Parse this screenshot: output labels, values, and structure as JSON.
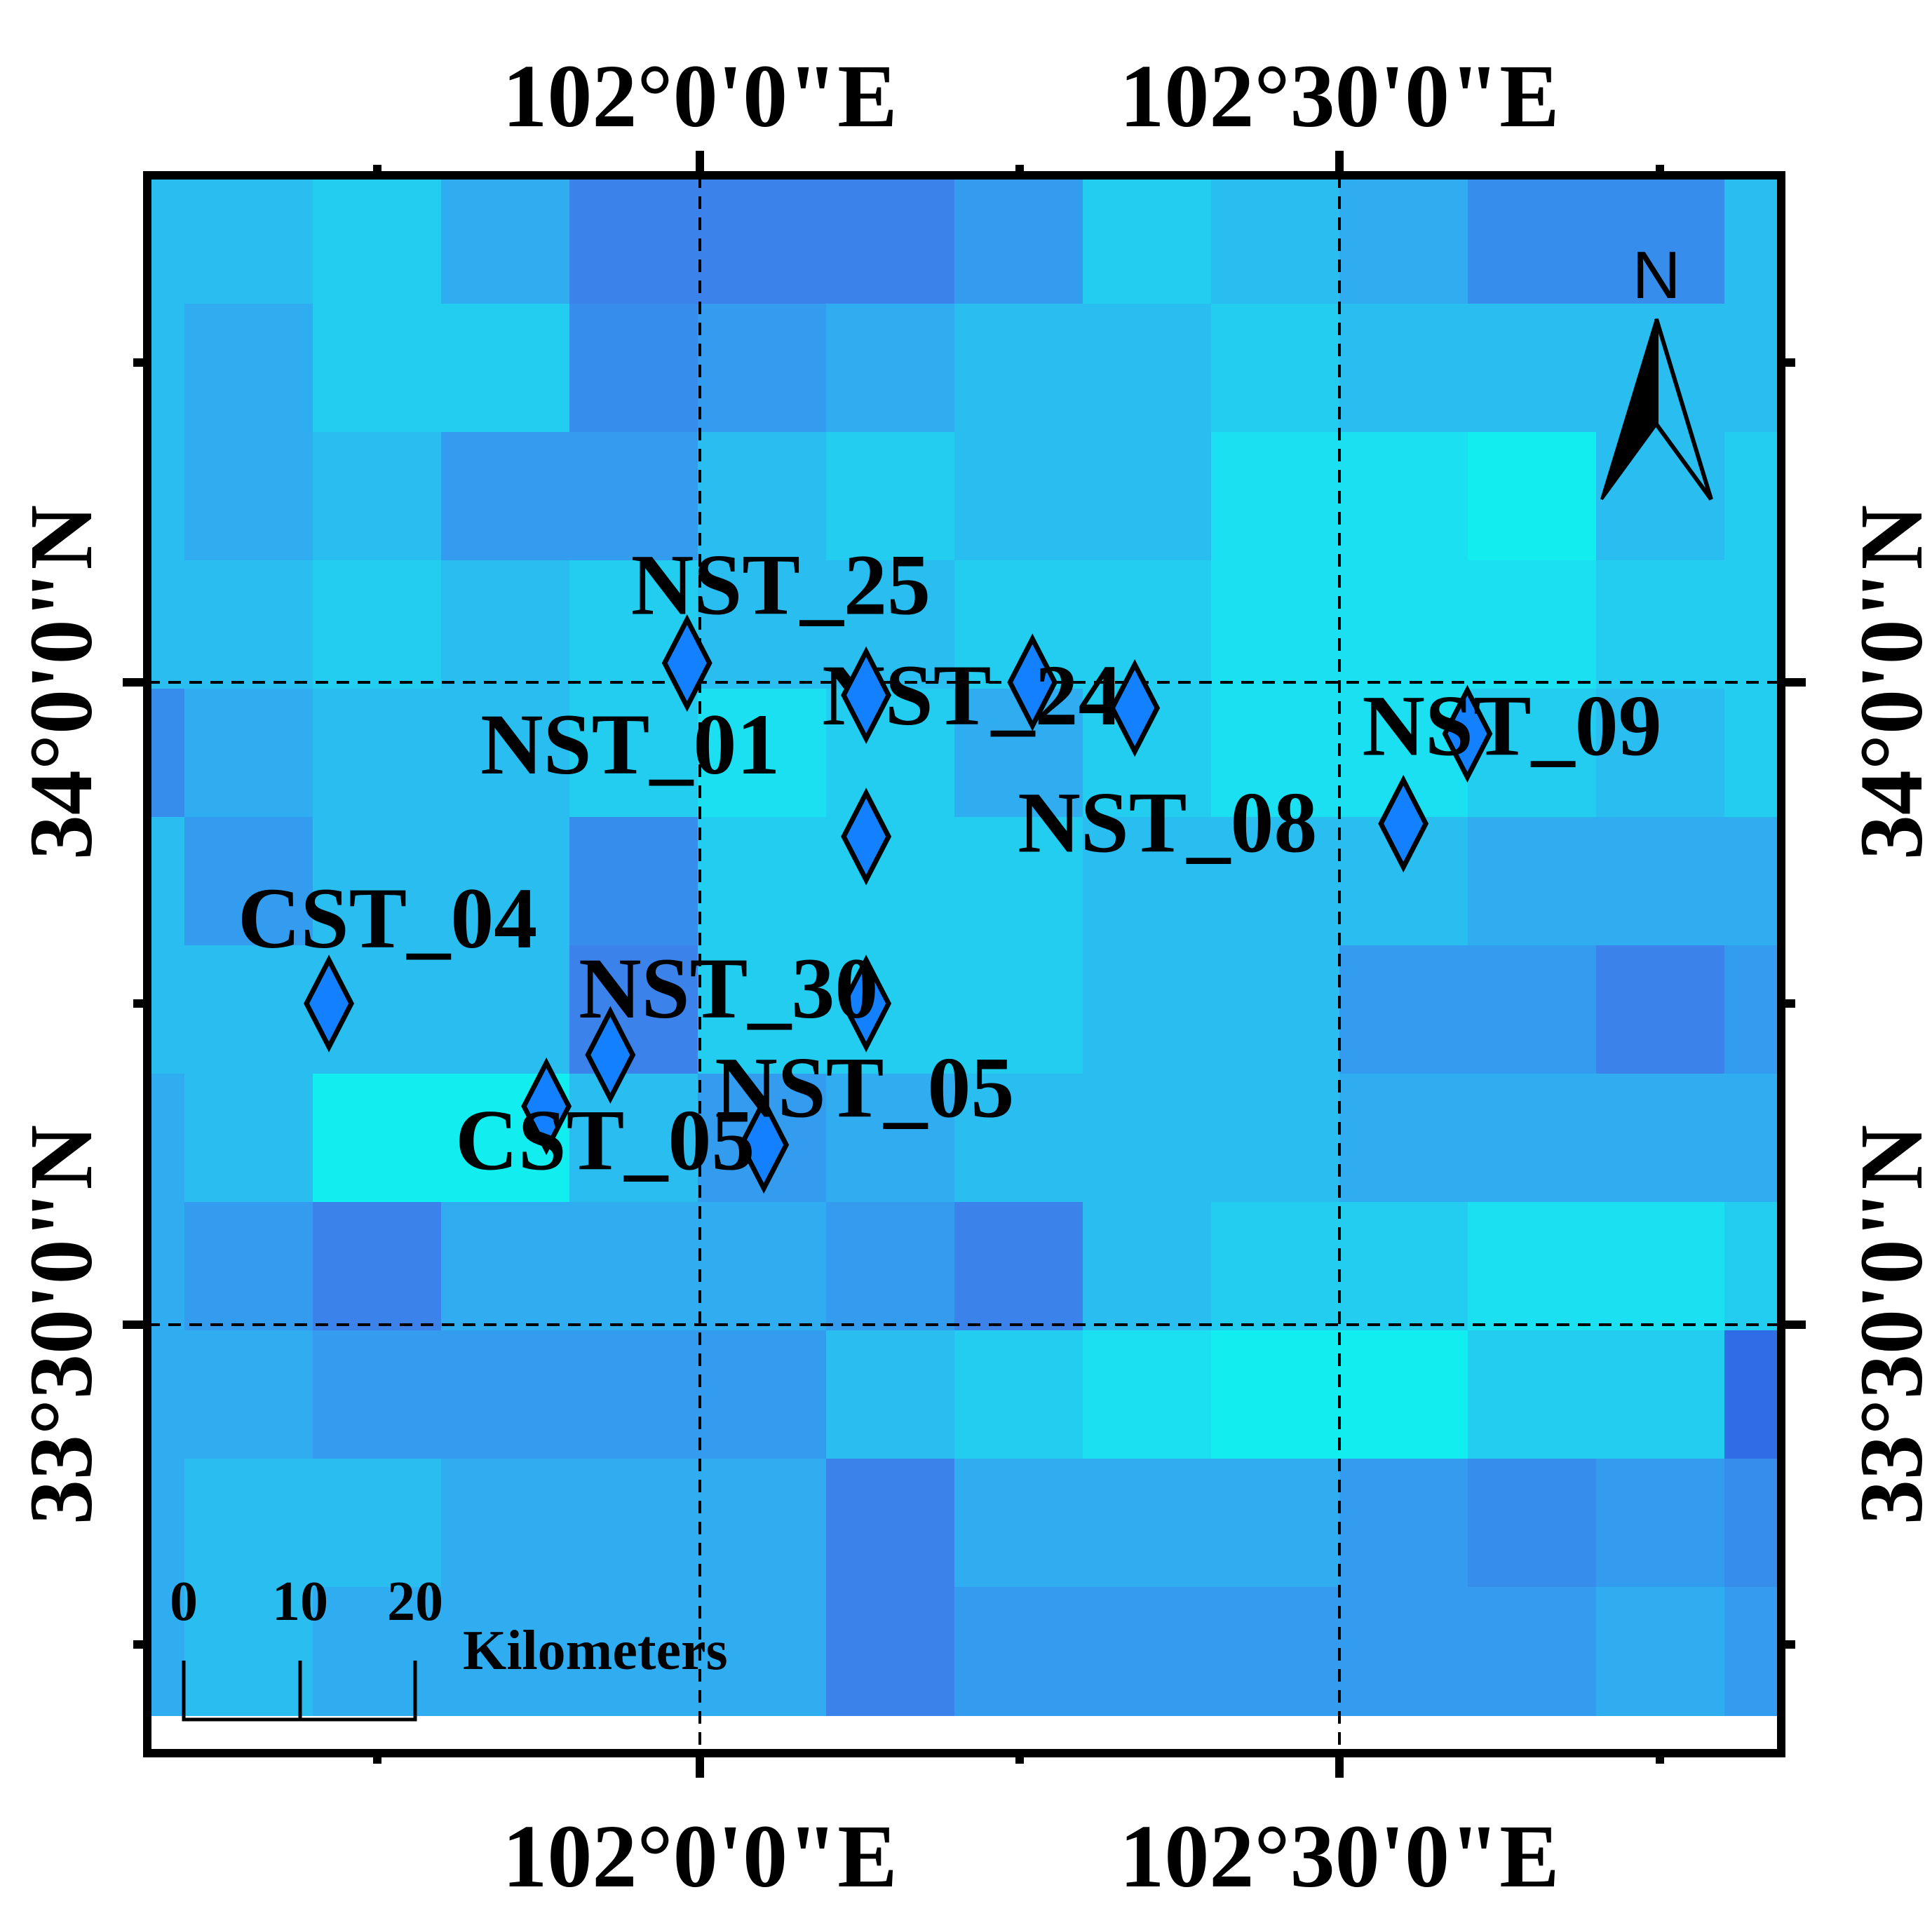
{
  "map": {
    "longitude_labels": [
      "102°0'0\"E",
      "102°30'0\"E"
    ],
    "latitude_labels": [
      "34°0'0\"N",
      "33°30'0\"N"
    ],
    "north_arrow_label": "N",
    "scale_bar": {
      "ticks": [
        "0",
        "10",
        "20"
      ],
      "unit": "Kilometers"
    },
    "raster": {
      "color_ramp": [
        "#12EEF0",
        "#1AE0F2",
        "#22CDF0",
        "#29BDF0",
        "#2FADF0",
        "#339CEE",
        "#378DEC",
        "#3B82EA",
        "#2F6CE6",
        "#1C3CE4"
      ],
      "grid": [
        [
          3,
          3,
          2,
          4,
          7,
          7,
          7,
          5,
          2,
          3,
          4,
          6,
          6,
          3,
          7
        ],
        [
          3,
          4,
          2,
          2,
          6,
          5,
          4,
          3,
          3,
          2,
          3,
          3,
          3,
          3,
          5
        ],
        [
          3,
          4,
          3,
          5,
          5,
          3,
          2,
          3,
          3,
          1,
          1,
          0,
          3,
          2,
          3
        ],
        [
          3,
          3,
          2,
          3,
          2,
          3,
          3,
          2,
          2,
          1,
          1,
          1,
          2,
          2,
          3
        ],
        [
          6,
          4,
          3,
          3,
          2,
          1,
          2,
          4,
          2,
          1,
          1,
          2,
          3,
          2,
          3
        ],
        [
          3,
          5,
          3,
          3,
          6,
          2,
          2,
          2,
          3,
          3,
          3,
          4,
          4,
          4,
          4
        ],
        [
          3,
          3,
          3,
          3,
          7,
          2,
          2,
          2,
          3,
          3,
          5,
          5,
          7,
          5,
          3
        ],
        [
          4,
          3,
          0,
          0,
          3,
          5,
          4,
          3,
          3,
          3,
          4,
          4,
          4,
          4,
          3
        ],
        [
          4,
          5,
          7,
          4,
          4,
          4,
          5,
          7,
          3,
          2,
          2,
          1,
          1,
          2,
          3
        ],
        [
          4,
          4,
          5,
          5,
          5,
          5,
          3,
          2,
          1,
          0,
          0,
          2,
          2,
          8,
          9
        ],
        [
          4,
          3,
          3,
          4,
          4,
          4,
          7,
          4,
          4,
          4,
          5,
          6,
          5,
          6,
          7
        ],
        [
          4,
          3,
          4,
          4,
          4,
          4,
          7,
          5,
          5,
          5,
          5,
          5,
          4,
          5,
          6
        ]
      ]
    },
    "stations": [
      {
        "name": "NST_25",
        "lon": 101.99,
        "lat": 34.015
      },
      {
        "name": "NST_24",
        "lon": 102.26,
        "lat": 34.0
      },
      {
        "name": "NST_01",
        "lon": 102.13,
        "lat": 33.88
      },
      {
        "name": "NST_08",
        "lon": 102.55,
        "lat": 33.89
      },
      {
        "name": "NST_09",
        "lon": 102.6,
        "lat": 33.96
      },
      {
        "name": "NST_30",
        "lon": 102.13,
        "lat": 33.75
      },
      {
        "name": "NST_05",
        "lon": 102.05,
        "lat": 33.64
      },
      {
        "name": "CST_04",
        "lon": 101.71,
        "lat": 33.75
      },
      {
        "name": "CST_05",
        "lon": 101.88,
        "lat": 33.67
      },
      {
        "name": "",
        "lon": 101.93,
        "lat": 33.71
      },
      {
        "name": "",
        "lon": 102.13,
        "lat": 33.99
      },
      {
        "name": "",
        "lon": 102.34,
        "lat": 33.98
      }
    ]
  }
}
